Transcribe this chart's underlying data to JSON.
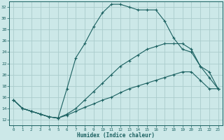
{
  "title": "",
  "xlabel": "Humidex (Indice chaleur)",
  "bg_color": "#cce8e8",
  "grid_color": "#aacccc",
  "line_color": "#1a6060",
  "xlim": [
    -0.5,
    23.5
  ],
  "ylim": [
    11,
    33
  ],
  "xticks": [
    0,
    1,
    2,
    3,
    4,
    5,
    6,
    7,
    8,
    9,
    10,
    11,
    12,
    13,
    14,
    15,
    16,
    17,
    18,
    19,
    20,
    21,
    22,
    23
  ],
  "yticks": [
    12,
    14,
    16,
    18,
    20,
    22,
    24,
    26,
    28,
    30,
    32
  ],
  "line1_x": [
    0,
    1,
    2,
    3,
    4,
    5,
    6,
    7,
    8,
    9,
    10,
    11,
    12,
    13,
    14,
    15,
    16,
    17,
    18,
    19,
    20,
    21,
    22,
    23
  ],
  "line1_y": [
    15.5,
    14.0,
    13.5,
    13.0,
    12.5,
    12.3,
    17.5,
    23.0,
    25.5,
    28.5,
    31.0,
    32.5,
    32.5,
    32.0,
    31.5,
    31.5,
    31.5,
    29.5,
    26.5,
    24.5,
    24.0,
    21.5,
    20.5,
    17.5
  ],
  "line2_x": [
    0,
    1,
    2,
    3,
    4,
    5,
    6,
    7,
    8,
    9,
    10,
    11,
    12,
    13,
    14,
    15,
    16,
    17,
    18,
    19,
    20,
    21,
    22,
    23
  ],
  "line2_y": [
    15.5,
    14.0,
    13.5,
    13.0,
    12.5,
    12.3,
    12.8,
    13.5,
    14.2,
    14.8,
    15.5,
    16.0,
    16.8,
    17.5,
    18.0,
    18.5,
    19.0,
    19.5,
    20.0,
    20.5,
    20.5,
    19.0,
    17.5,
    17.5
  ],
  "line3_x": [
    0,
    1,
    2,
    3,
    4,
    5,
    6,
    7,
    8,
    9,
    10,
    11,
    12,
    13,
    14,
    15,
    16,
    17,
    18,
    19,
    20,
    21,
    22,
    23
  ],
  "line3_y": [
    15.5,
    14.0,
    13.5,
    13.0,
    12.5,
    12.3,
    13.0,
    14.0,
    15.5,
    17.0,
    18.5,
    20.0,
    21.5,
    22.5,
    23.5,
    24.5,
    25.0,
    25.5,
    25.5,
    25.5,
    24.5,
    21.5,
    19.5,
    17.5
  ]
}
